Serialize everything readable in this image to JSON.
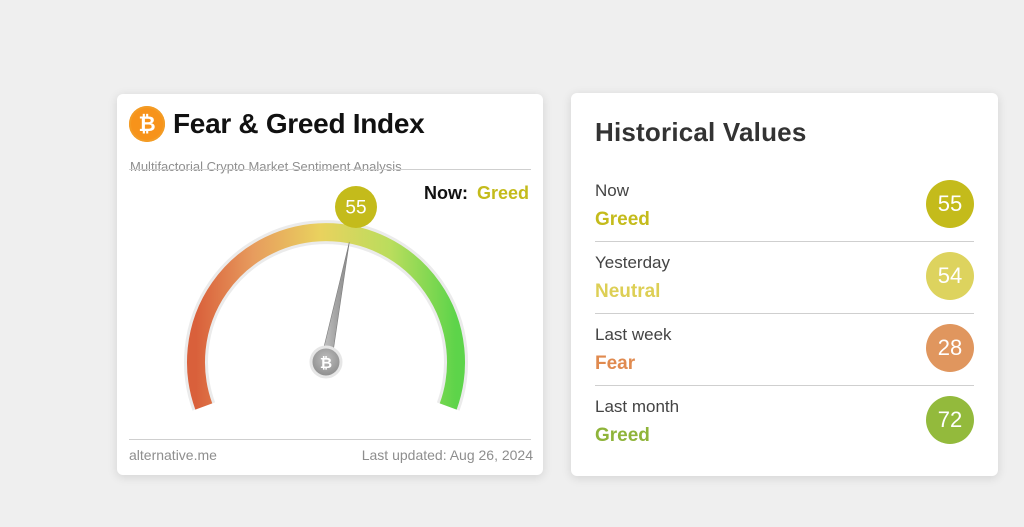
{
  "gauge_card": {
    "logo_symbol": "₿",
    "title": "Fear & Greed Index",
    "subtitle": "Multifactorial Crypto Market Sentiment Analysis",
    "now_label": "Now:",
    "now_value": "Greed",
    "value": "55",
    "needle_value": 55,
    "gauge_min": 0,
    "gauge_max": 100,
    "hub_symbol": "₿",
    "footer_source": "alternative.me",
    "footer_updated": "Last updated: Aug 26, 2024",
    "colors": {
      "fear": "#d9603b",
      "neutral": "#e8d35a",
      "greed": "#5dd44a",
      "value_badge": "#c4bb1b"
    }
  },
  "history_card": {
    "title": "Historical Values",
    "rows": [
      {
        "period": "Now",
        "sentiment": "Greed",
        "value": "55",
        "text_color": "#c4bb1b",
        "circle_color": "#c4bb1b"
      },
      {
        "period": "Yesterday",
        "sentiment": "Neutral",
        "value": "54",
        "text_color": "#ddcf55",
        "circle_color": "#ddd35e"
      },
      {
        "period": "Last week",
        "sentiment": "Fear",
        "value": "28",
        "text_color": "#e08a4f",
        "circle_color": "#e0965e"
      },
      {
        "period": "Last month",
        "sentiment": "Greed",
        "value": "72",
        "text_color": "#8fb43a",
        "circle_color": "#93ba3c"
      }
    ]
  }
}
